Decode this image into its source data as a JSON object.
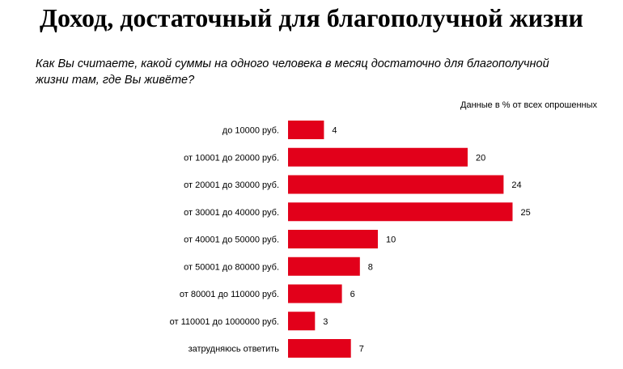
{
  "chart_data": {
    "type": "bar",
    "orientation": "horizontal",
    "title": "Доход, достаточный для благополучной жизни",
    "subtitle": "Как Вы считаете, какой суммы на одного человека в месяц достаточно для благополучной жизни там, где Вы живёте?",
    "note": "Данные в % от всех опрошенных",
    "categories": [
      "до 10000 руб.",
      "от 10001 до 20000 руб.",
      "от 20001 до 30000 руб.",
      "от 30001 до 40000 руб.",
      "от 40001 до 50000 руб.",
      "от 50001 до 80000 руб.",
      "от 80001 до 110000 руб.",
      "от 110001 до 1000000 руб.",
      "затрудняюсь ответить"
    ],
    "values": [
      4,
      20,
      24,
      25,
      10,
      8,
      6,
      3,
      7
    ],
    "xlim": [
      0,
      25
    ],
    "grid": false,
    "bar_color": "#e2001a"
  }
}
